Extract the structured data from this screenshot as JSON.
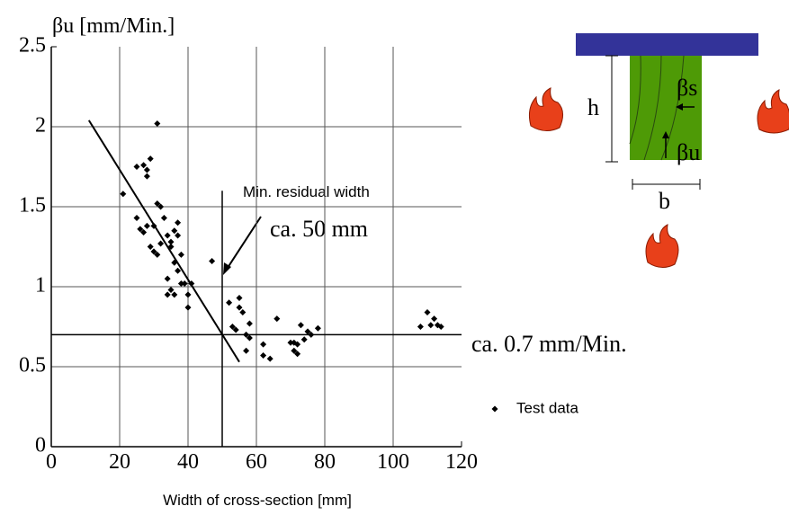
{
  "chart_data": {
    "type": "scatter",
    "y_label": "βu [mm/Min.]",
    "x_label": "Width of cross-section [mm]",
    "xlim": [
      0,
      120
    ],
    "xticks": [
      0,
      20,
      40,
      60,
      80,
      100,
      120
    ],
    "ylim": [
      0,
      2.5
    ],
    "yticks": [
      0,
      0.5,
      1,
      1.5,
      2,
      2.5
    ],
    "grid": true,
    "series": [
      {
        "name": "Test data",
        "color": "#000000",
        "x": [
          21,
          25,
          25,
          27,
          28,
          28,
          29,
          31,
          26,
          27,
          28,
          29,
          30,
          30,
          31,
          32,
          31,
          32,
          33,
          34,
          35,
          35,
          36,
          37,
          37,
          34,
          35,
          36,
          37,
          38,
          38,
          39,
          40,
          41,
          40,
          36,
          34,
          47,
          52,
          53,
          54,
          55,
          55,
          56,
          57,
          57,
          58,
          58,
          62,
          62,
          64,
          66,
          70,
          71,
          71,
          72,
          72,
          73,
          74,
          75,
          78,
          76,
          108,
          110,
          111,
          112,
          113,
          114
        ],
        "values": [
          1.58,
          1.43,
          1.75,
          1.76,
          1.69,
          1.73,
          1.8,
          2.02,
          1.36,
          1.34,
          1.38,
          1.25,
          1.22,
          1.38,
          1.52,
          1.5,
          1.2,
          1.27,
          1.43,
          1.32,
          1.28,
          1.25,
          1.35,
          1.4,
          1.32,
          1.05,
          0.98,
          1.15,
          1.1,
          1.02,
          1.2,
          1.02,
          0.95,
          1.02,
          0.87,
          0.95,
          0.95,
          1.16,
          0.9,
          0.75,
          0.73,
          0.93,
          0.87,
          0.84,
          0.7,
          0.6,
          0.77,
          0.68,
          0.64,
          0.57,
          0.55,
          0.8,
          0.65,
          0.65,
          0.6,
          0.58,
          0.64,
          0.76,
          0.67,
          0.72,
          0.74,
          0.7,
          0.75,
          0.84,
          0.76,
          0.8,
          0.76,
          0.75
        ]
      }
    ],
    "trend_line": {
      "x": [
        11,
        55
      ],
      "y": [
        2.04,
        0.53
      ]
    },
    "vline": {
      "x": 50,
      "y": [
        0,
        1.6
      ]
    },
    "hline": 0.7,
    "annotations": [
      "Min. residual width",
      "ca. 50 mm",
      "ca. 0.7 mm/Min."
    ]
  },
  "diagram": {
    "labels": [
      "h",
      "b",
      "βs",
      "βu"
    ]
  }
}
